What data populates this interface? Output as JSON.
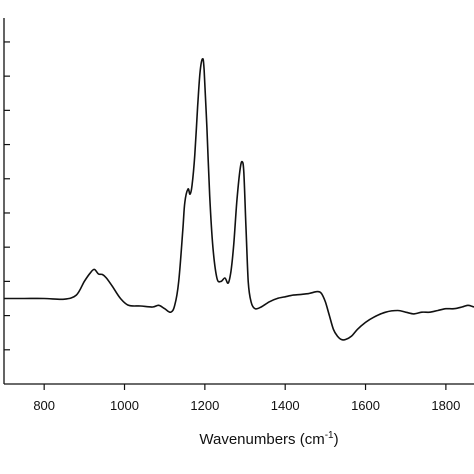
{
  "chart_data": {
    "type": "line",
    "title": "",
    "xlabel": "Wavenumbers (cm",
    "xlabel_superscript": "-1",
    "xlabel_suffix": ")",
    "ylabel": "",
    "xlim": [
      700,
      1870
    ],
    "ylim": [
      -0.25,
      0.82
    ],
    "x_ticks": [
      800,
      1000,
      1200,
      1400,
      1600,
      1800
    ],
    "x_tick_labels": [
      "800",
      "1000",
      "1200",
      "1400",
      "1600",
      "1800"
    ],
    "y_ticks": [
      -0.15,
      -0.05,
      0.05,
      0.15,
      0.25,
      0.35,
      0.45,
      0.55,
      0.65,
      0.75
    ],
    "y_tick_labels_visible": false,
    "grid": false,
    "line_color": "#111111",
    "series": [
      {
        "x": [
          700,
          750,
          800,
          850,
          880,
          900,
          915,
          925,
          935,
          945,
          955,
          970,
          990,
          1010,
          1040,
          1070,
          1085,
          1100,
          1115,
          1125,
          1135,
          1145,
          1150,
          1158,
          1163,
          1168,
          1175,
          1182,
          1188,
          1194,
          1198,
          1205,
          1212,
          1220,
          1230,
          1240,
          1250,
          1258,
          1265,
          1272,
          1280,
          1288,
          1293,
          1297,
          1302,
          1308,
          1315,
          1325,
          1340,
          1360,
          1380,
          1400,
          1420,
          1440,
          1460,
          1480,
          1490,
          1500,
          1510,
          1520,
          1530,
          1540,
          1550,
          1565,
          1580,
          1600,
          1620,
          1650,
          1680,
          1700,
          1720,
          1740,
          1760,
          1780,
          1800,
          1820,
          1840,
          1855,
          1870
        ],
        "y": [
          0.0,
          0.0,
          0.0,
          -0.002,
          0.01,
          0.05,
          0.075,
          0.085,
          0.072,
          0.07,
          0.06,
          0.035,
          0.0,
          -0.02,
          -0.022,
          -0.025,
          -0.02,
          -0.03,
          -0.04,
          -0.02,
          0.05,
          0.2,
          0.28,
          0.32,
          0.305,
          0.33,
          0.42,
          0.56,
          0.66,
          0.7,
          0.67,
          0.5,
          0.3,
          0.15,
          0.06,
          0.05,
          0.06,
          0.045,
          0.08,
          0.16,
          0.29,
          0.38,
          0.4,
          0.37,
          0.22,
          0.05,
          -0.01,
          -0.03,
          -0.025,
          -0.01,
          0.0,
          0.005,
          0.01,
          0.012,
          0.015,
          0.02,
          0.015,
          -0.01,
          -0.05,
          -0.09,
          -0.11,
          -0.12,
          -0.12,
          -0.11,
          -0.09,
          -0.07,
          -0.055,
          -0.04,
          -0.035,
          -0.04,
          -0.045,
          -0.04,
          -0.04,
          -0.035,
          -0.03,
          -0.03,
          -0.025,
          -0.02,
          -0.025
        ]
      }
    ]
  }
}
